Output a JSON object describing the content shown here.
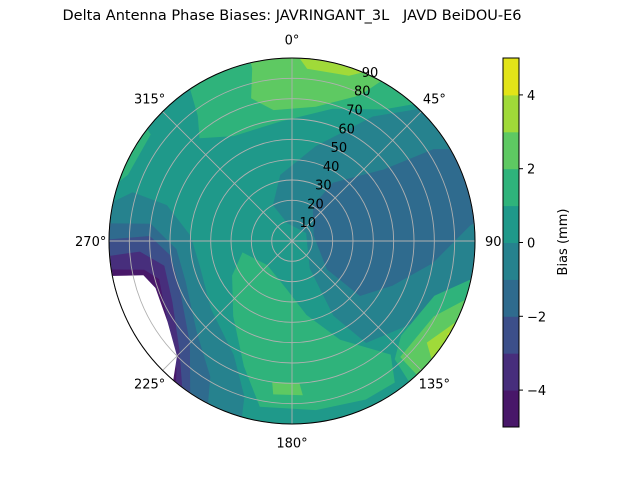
{
  "chart_data": {
    "type": "polar-contour",
    "title": "Delta Antenna Phase Biases: JAVRINGANT_3L   JAVD BeiDOU-E6",
    "theta_direction": "clockwise",
    "theta_zero": "top",
    "theta_tick_labels": [
      "0°",
      "45°",
      "90",
      "135°",
      "180°",
      "225°",
      "270°",
      "315°"
    ],
    "theta_ticks": [
      0,
      45,
      90,
      135,
      180,
      225,
      270,
      315
    ],
    "r_ticks": [
      10,
      20,
      30,
      40,
      50,
      60,
      70,
      80,
      90
    ],
    "r_tick_labels": [
      "10",
      "20",
      "30",
      "40",
      "50",
      "60",
      "70",
      "80",
      "90"
    ],
    "rlim": [
      0,
      90
    ],
    "grid": true,
    "colorbar": {
      "label": "Bias (mm)",
      "levels": [
        -5,
        -4,
        -3,
        -2,
        -1,
        0,
        1,
        2,
        3,
        4,
        5
      ],
      "tick_values": [
        4,
        2,
        0,
        -2,
        -4
      ],
      "tick_labels": [
        "4",
        "2",
        "0",
        "−2",
        "−4"
      ],
      "colors": [
        "#481769",
        "#472e7c",
        "#3c4f8a",
        "#2f6b8e",
        "#26828e",
        "#1f998a",
        "#2fb37b",
        "#5ec962",
        "#a0da39",
        "#e2e418"
      ],
      "placement": "right"
    },
    "base_level": "0 to 1",
    "regions": [
      {
        "level": "-1 to 0",
        "color": "#26828e",
        "points": [
          [
            278,
            90
          ],
          [
            287,
            82
          ],
          [
            286,
            64
          ],
          [
            273,
            50
          ],
          [
            255,
            47
          ],
          [
            230,
            52
          ],
          [
            207,
            63
          ],
          [
            197,
            80
          ],
          [
            195,
            90
          ]
        ]
      },
      {
        "level": "-2 to -1",
        "color": "#2f6b8e",
        "points": [
          [
            275,
            90
          ],
          [
            277,
            70
          ],
          [
            266,
            57
          ],
          [
            249,
            56
          ],
          [
            226,
            65
          ],
          [
            211,
            78
          ],
          [
            205,
            90
          ]
        ]
      },
      {
        "level": "-3 to -2",
        "color": "#3c4f8a",
        "points": [
          [
            270,
            90
          ],
          [
            272,
            70
          ],
          [
            263,
            60
          ],
          [
            247,
            60
          ],
          [
            225,
            71
          ],
          [
            210,
            90
          ]
        ]
      },
      {
        "level": "-4 to -3",
        "color": "#472e7c",
        "points": [
          [
            265,
            90
          ],
          [
            266,
            75
          ],
          [
            259,
            64
          ],
          [
            243,
            66
          ],
          [
            226,
            77
          ],
          [
            212,
            90
          ]
        ]
      },
      {
        "level": "-5 to -4",
        "color": "#481769",
        "points": [
          [
            262,
            90
          ],
          [
            259,
            74
          ],
          [
            254,
            68
          ],
          [
            239,
            72
          ],
          [
            222,
            85
          ],
          [
            215,
            90
          ]
        ]
      },
      {
        "level": "no data",
        "color": "#ffffff",
        "points": [
          [
            260,
            90
          ],
          [
            257,
            75
          ],
          [
            251,
            71
          ],
          [
            237,
            73
          ],
          [
            225,
            80
          ],
          [
            217,
            90
          ]
        ]
      },
      {
        "level": "-1 to 0",
        "color": "#26828e",
        "points": [
          [
            48,
            90
          ],
          [
            33,
            73
          ],
          [
            14,
            48
          ],
          [
            350,
            33
          ],
          [
            332,
            20
          ],
          [
            345,
            9
          ],
          [
            60,
            8
          ],
          [
            147,
            16
          ],
          [
            151,
            42
          ],
          [
            144,
            62
          ],
          [
            123,
            73
          ],
          [
            106,
            86
          ],
          [
            98,
            90
          ]
        ]
      },
      {
        "level": "-2 to -1",
        "color": "#2f6b8e",
        "points": [
          [
            63,
            90
          ],
          [
            57,
            83
          ],
          [
            52,
            57
          ],
          [
            35,
            35
          ],
          [
            31,
            20
          ],
          [
            76,
            11
          ],
          [
            129,
            22
          ],
          [
            129,
            43
          ],
          [
            114,
            54
          ],
          [
            99,
            70
          ],
          [
            85,
            88
          ],
          [
            82,
            90
          ]
        ]
      },
      {
        "level": "1 to 2",
        "color": "#2fb37b",
        "points": [
          [
            257,
            25
          ],
          [
            226,
            17
          ],
          [
            186,
            24
          ],
          [
            169,
            37
          ],
          [
            154,
            54
          ],
          [
            139,
            74
          ],
          [
            144,
            86
          ],
          [
            155,
            86
          ],
          [
            172,
            84
          ],
          [
            191,
            83
          ],
          [
            201,
            66
          ],
          [
            218,
            47
          ],
          [
            240,
            34
          ]
        ]
      },
      {
        "level": "2 to 3",
        "color": "#5ec962",
        "points": [
          [
            188,
            70
          ],
          [
            177,
            70
          ],
          [
            176,
            76
          ],
          [
            187,
            76
          ]
        ]
      },
      {
        "level": "1 to 2",
        "color": "#2fb37b",
        "points": [
          [
            98,
            90
          ],
          [
            111,
            75
          ],
          [
            131,
            71
          ],
          [
            139,
            77
          ],
          [
            141,
            90
          ]
        ]
      },
      {
        "level": "2 to 3",
        "color": "#5ec962",
        "points": [
          [
            103,
            90
          ],
          [
            118,
            79
          ],
          [
            137,
            78
          ],
          [
            137,
            90
          ]
        ]
      },
      {
        "level": "3 to 4",
        "color": "#a0da39",
        "points": [
          [
            107,
            90
          ],
          [
            127,
            83
          ],
          [
            134,
            90
          ]
        ]
      },
      {
        "level": "4 to 5",
        "color": "#e2e418",
        "points": [
          [
            109,
            90
          ],
          [
            121,
            89
          ],
          [
            122,
            90
          ]
        ]
      },
      {
        "level": "1 to 2",
        "color": "#2fb37b",
        "points": [
          [
            46,
            90
          ],
          [
            35,
            79
          ],
          [
            17,
            68
          ],
          [
            354,
            59
          ],
          [
            331,
            59
          ],
          [
            318,
            68
          ],
          [
            323,
            77
          ],
          [
            328,
            90
          ]
        ]
      },
      {
        "level": "2 to 3",
        "color": "#5ec962",
        "points": [
          [
            32,
            90
          ],
          [
            25,
            79
          ],
          [
            10,
            67
          ],
          [
            352,
            65
          ],
          [
            344,
            73
          ],
          [
            347,
            87
          ],
          [
            347,
            90
          ]
        ]
      },
      {
        "level": "3 to 4",
        "color": "#a0da39",
        "points": [
          [
            358,
            90
          ],
          [
            5,
            85
          ],
          [
            19,
            86
          ],
          [
            30,
            90
          ]
        ]
      },
      {
        "level": "1 to 2",
        "color": "#2fb37b",
        "points": [
          [
            281,
            90
          ],
          [
            292,
            87
          ],
          [
            307,
            87
          ],
          [
            310,
            90
          ]
        ]
      }
    ]
  }
}
